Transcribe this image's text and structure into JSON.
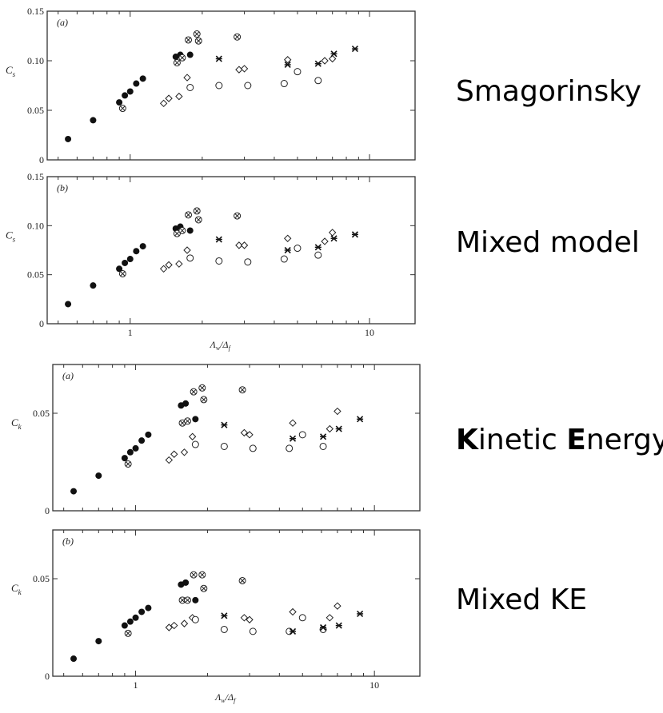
{
  "labels": {
    "smagorinsky": "Smagorinsky",
    "mixed_model": "Mixed model",
    "kinetic_prefix": "K",
    "kinetic_rest": "inetic ",
    "energy_prefix": "E",
    "energy_rest": "nergy",
    "mixed_ke": "Mixed KE"
  },
  "chart_data": [
    {
      "type": "scatter",
      "panel": "(a)",
      "ylabel": "C_s",
      "xscale": "log",
      "xlim": [
        0.45,
        15.5
      ],
      "ylim": [
        0,
        0.15
      ],
      "yticks": [
        0,
        0.05,
        0.1,
        0.15
      ],
      "ytick_labels": [
        "0",
        "0.05",
        "0.10",
        "0.15"
      ],
      "xticks": [
        1,
        10
      ],
      "xtick_labels": [],
      "series": [
        {
          "marker": "filled-circle",
          "points": [
            [
              0.55,
              0.021
            ],
            [
              0.7,
              0.04
            ],
            [
              0.9,
              0.058
            ],
            [
              0.95,
              0.065
            ],
            [
              1.0,
              0.069
            ],
            [
              1.06,
              0.077
            ],
            [
              1.13,
              0.082
            ],
            [
              1.55,
              0.104
            ],
            [
              1.62,
              0.106
            ],
            [
              1.78,
              0.106
            ]
          ]
        },
        {
          "marker": "crossed-circle",
          "points": [
            [
              0.93,
              0.052
            ],
            [
              1.57,
              0.098
            ],
            [
              1.65,
              0.103
            ],
            [
              1.75,
              0.121
            ],
            [
              1.9,
              0.127
            ],
            [
              1.93,
              0.12
            ],
            [
              2.8,
              0.124
            ]
          ]
        },
        {
          "marker": "open-diamond",
          "points": [
            [
              1.38,
              0.057
            ],
            [
              1.45,
              0.062
            ],
            [
              1.6,
              0.064
            ],
            [
              1.73,
              0.083
            ],
            [
              2.85,
              0.091
            ],
            [
              3.0,
              0.092
            ],
            [
              4.55,
              0.101
            ],
            [
              6.5,
              0.1
            ],
            [
              7.0,
              0.102
            ]
          ]
        },
        {
          "marker": "open-circle",
          "points": [
            [
              1.78,
              0.073
            ],
            [
              2.35,
              0.075
            ],
            [
              3.1,
              0.075
            ],
            [
              4.4,
              0.077
            ],
            [
              5.0,
              0.089
            ],
            [
              6.1,
              0.08
            ]
          ]
        },
        {
          "marker": "asterisk",
          "points": [
            [
              2.35,
              0.102
            ],
            [
              4.55,
              0.096
            ],
            [
              6.1,
              0.097
            ],
            [
              7.1,
              0.107
            ],
            [
              8.7,
              0.112
            ]
          ]
        }
      ]
    },
    {
      "type": "scatter",
      "panel": "(b)",
      "ylabel": "C_s",
      "xlabel": "Λw/Δf",
      "xscale": "log",
      "xlim": [
        0.45,
        15.5
      ],
      "ylim": [
        0,
        0.15
      ],
      "yticks": [
        0,
        0.05,
        0.1,
        0.15
      ],
      "ytick_labels": [
        "0",
        "0.05",
        "0.10",
        "0.15"
      ],
      "xticks": [
        1,
        10
      ],
      "xtick_labels": [
        "1",
        "10"
      ],
      "series": [
        {
          "marker": "filled-circle",
          "points": [
            [
              0.55,
              0.02
            ],
            [
              0.7,
              0.039
            ],
            [
              0.9,
              0.056
            ],
            [
              0.95,
              0.062
            ],
            [
              1.0,
              0.066
            ],
            [
              1.06,
              0.074
            ],
            [
              1.13,
              0.079
            ],
            [
              1.55,
              0.097
            ],
            [
              1.62,
              0.099
            ],
            [
              1.78,
              0.095
            ]
          ]
        },
        {
          "marker": "crossed-circle",
          "points": [
            [
              0.93,
              0.051
            ],
            [
              1.57,
              0.092
            ],
            [
              1.65,
              0.095
            ],
            [
              1.75,
              0.111
            ],
            [
              1.9,
              0.115
            ],
            [
              1.93,
              0.106
            ],
            [
              2.8,
              0.11
            ]
          ]
        },
        {
          "marker": "open-diamond",
          "points": [
            [
              1.38,
              0.056
            ],
            [
              1.45,
              0.06
            ],
            [
              1.6,
              0.061
            ],
            [
              1.73,
              0.075
            ],
            [
              2.85,
              0.08
            ],
            [
              3.0,
              0.08
            ],
            [
              4.55,
              0.087
            ],
            [
              6.5,
              0.084
            ],
            [
              7.0,
              0.093
            ]
          ]
        },
        {
          "marker": "open-circle",
          "points": [
            [
              1.78,
              0.067
            ],
            [
              2.35,
              0.064
            ],
            [
              3.1,
              0.063
            ],
            [
              4.4,
              0.066
            ],
            [
              5.0,
              0.077
            ],
            [
              6.1,
              0.07
            ]
          ]
        },
        {
          "marker": "asterisk",
          "points": [
            [
              2.35,
              0.086
            ],
            [
              4.55,
              0.075
            ],
            [
              6.1,
              0.078
            ],
            [
              7.1,
              0.087
            ],
            [
              8.7,
              0.091
            ]
          ]
        }
      ]
    },
    {
      "type": "scatter",
      "panel": "(a)",
      "ylabel": "C_k",
      "xscale": "log",
      "xlim": [
        0.45,
        15.5
      ],
      "ylim": [
        0,
        0.075
      ],
      "yticks": [
        0,
        0.05
      ],
      "ytick_labels": [
        "0",
        "0.05"
      ],
      "xticks": [
        1,
        10
      ],
      "xtick_labels": [],
      "series": [
        {
          "marker": "filled-circle",
          "points": [
            [
              0.55,
              0.01
            ],
            [
              0.7,
              0.018
            ],
            [
              0.9,
              0.027
            ],
            [
              0.95,
              0.03
            ],
            [
              1.0,
              0.032
            ],
            [
              1.06,
              0.036
            ],
            [
              1.13,
              0.039
            ],
            [
              1.55,
              0.054
            ],
            [
              1.62,
              0.055
            ],
            [
              1.78,
              0.047
            ]
          ]
        },
        {
          "marker": "crossed-circle",
          "points": [
            [
              0.93,
              0.024
            ],
            [
              1.57,
              0.045
            ],
            [
              1.65,
              0.046
            ],
            [
              1.75,
              0.061
            ],
            [
              1.9,
              0.063
            ],
            [
              1.93,
              0.057
            ],
            [
              2.8,
              0.062
            ]
          ]
        },
        {
          "marker": "open-diamond",
          "points": [
            [
              1.38,
              0.026
            ],
            [
              1.45,
              0.029
            ],
            [
              1.6,
              0.03
            ],
            [
              1.73,
              0.038
            ],
            [
              2.85,
              0.04
            ],
            [
              3.0,
              0.039
            ],
            [
              4.55,
              0.045
            ],
            [
              6.5,
              0.042
            ],
            [
              7.0,
              0.051
            ]
          ]
        },
        {
          "marker": "open-circle",
          "points": [
            [
              1.78,
              0.034
            ],
            [
              2.35,
              0.033
            ],
            [
              3.1,
              0.032
            ],
            [
              4.4,
              0.032
            ],
            [
              5.0,
              0.039
            ],
            [
              6.1,
              0.033
            ]
          ]
        },
        {
          "marker": "asterisk",
          "points": [
            [
              2.35,
              0.044
            ],
            [
              4.55,
              0.037
            ],
            [
              6.1,
              0.038
            ],
            [
              7.1,
              0.042
            ],
            [
              8.7,
              0.047
            ]
          ]
        }
      ]
    },
    {
      "type": "scatter",
      "panel": "(b)",
      "ylabel": "C_k",
      "xlabel": "Λw/Δf",
      "xscale": "log",
      "xlim": [
        0.45,
        15.5
      ],
      "ylim": [
        0,
        0.075
      ],
      "yticks": [
        0,
        0.05
      ],
      "ytick_labels": [
        "0",
        "0.05"
      ],
      "xticks": [
        1,
        10
      ],
      "xtick_labels": [
        "1",
        "10"
      ],
      "series": [
        {
          "marker": "filled-circle",
          "points": [
            [
              0.55,
              0.009
            ],
            [
              0.7,
              0.018
            ],
            [
              0.9,
              0.026
            ],
            [
              0.95,
              0.028
            ],
            [
              1.0,
              0.03
            ],
            [
              1.06,
              0.033
            ],
            [
              1.13,
              0.035
            ],
            [
              1.55,
              0.047
            ],
            [
              1.62,
              0.048
            ],
            [
              1.78,
              0.039
            ]
          ]
        },
        {
          "marker": "crossed-circle",
          "points": [
            [
              0.93,
              0.022
            ],
            [
              1.57,
              0.039
            ],
            [
              1.65,
              0.039
            ],
            [
              1.75,
              0.052
            ],
            [
              1.9,
              0.052
            ],
            [
              1.93,
              0.045
            ],
            [
              2.8,
              0.049
            ]
          ]
        },
        {
          "marker": "open-diamond",
          "points": [
            [
              1.38,
              0.025
            ],
            [
              1.45,
              0.026
            ],
            [
              1.6,
              0.027
            ],
            [
              1.73,
              0.03
            ],
            [
              2.85,
              0.03
            ],
            [
              3.0,
              0.029
            ],
            [
              4.55,
              0.033
            ],
            [
              6.5,
              0.03
            ],
            [
              7.0,
              0.036
            ]
          ]
        },
        {
          "marker": "open-circle",
          "points": [
            [
              1.78,
              0.029
            ],
            [
              2.35,
              0.024
            ],
            [
              3.1,
              0.023
            ],
            [
              4.4,
              0.023
            ],
            [
              5.0,
              0.03
            ],
            [
              6.1,
              0.024
            ]
          ]
        },
        {
          "marker": "asterisk",
          "points": [
            [
              2.35,
              0.031
            ],
            [
              4.55,
              0.023
            ],
            [
              6.1,
              0.025
            ],
            [
              7.1,
              0.026
            ],
            [
              8.7,
              0.032
            ]
          ]
        }
      ]
    }
  ]
}
